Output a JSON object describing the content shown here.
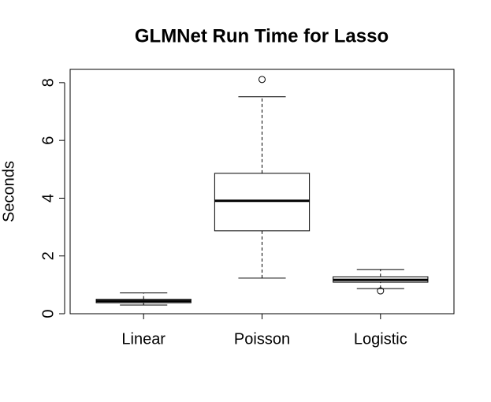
{
  "chart_data": {
    "type": "boxplot",
    "title": "GLMNet Run Time for Lasso",
    "y_label": "Seconds",
    "categories": [
      "Linear",
      "Poisson",
      "Logistic"
    ],
    "boxes": [
      {
        "min": 0.3,
        "q1": 0.38,
        "median": 0.44,
        "q3": 0.5,
        "max": 0.72,
        "outliers": []
      },
      {
        "min": 1.23,
        "q1": 2.87,
        "median": 3.91,
        "q3": 4.86,
        "max": 7.51,
        "outliers": [
          8.11
        ]
      },
      {
        "min": 0.87,
        "q1": 1.09,
        "median": 1.17,
        "q3": 1.28,
        "max": 1.53,
        "outliers": [
          0.79
        ]
      }
    ],
    "color": "#ffffff",
    "ylim": [
      0,
      8.46
    ],
    "yticks": [
      0,
      2,
      4,
      6,
      8
    ]
  }
}
